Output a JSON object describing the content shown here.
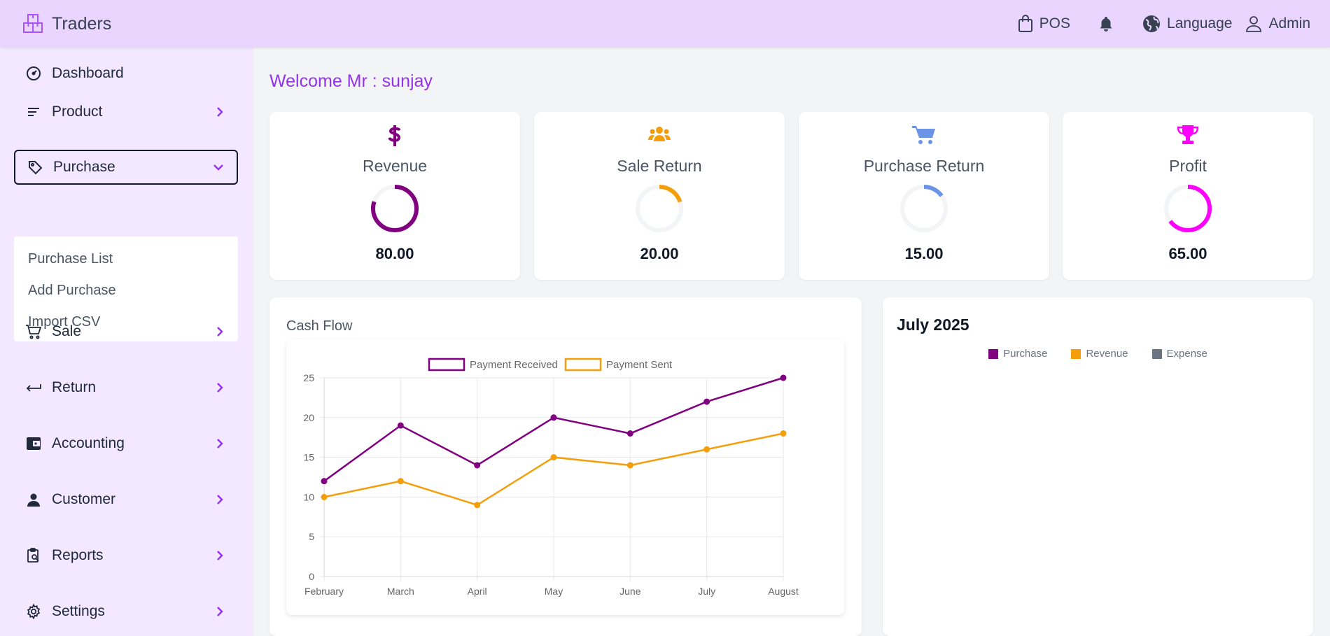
{
  "header": {
    "brand": "Traders",
    "actions": {
      "pos": "POS",
      "language": "Language",
      "admin": "Admin"
    }
  },
  "sidebar": {
    "items": [
      {
        "label": "Dashboard",
        "icon": "dashboard-icon"
      },
      {
        "label": "Product",
        "icon": "product-icon"
      },
      {
        "label": "Purchase",
        "icon": "tag-icon"
      },
      {
        "label": "Sale",
        "icon": "cart-icon"
      },
      {
        "label": "Return",
        "icon": "return-icon"
      },
      {
        "label": "Accounting",
        "icon": "wallet-icon"
      },
      {
        "label": "Customer",
        "icon": "user-icon"
      },
      {
        "label": "Reports",
        "icon": "reports-icon"
      },
      {
        "label": "Settings",
        "icon": "gear-icon"
      }
    ],
    "purchase_submenu": [
      "Purchase List",
      "Add Purchase",
      "Import CSV"
    ]
  },
  "welcome": "Welcome Mr : sunjay",
  "cards": [
    {
      "title": "Revenue",
      "value": "80.00",
      "percent": 80,
      "color": "#800080",
      "icon": "dollar-icon"
    },
    {
      "title": "Sale Return",
      "value": "20.00",
      "percent": 20,
      "color": "#f59e0b",
      "icon": "users-icon"
    },
    {
      "title": "Purchase Return",
      "value": "15.00",
      "percent": 15,
      "color": "#6b93e6",
      "icon": "cart-icon"
    },
    {
      "title": "Profit",
      "value": "65.00",
      "percent": 65,
      "color": "#ff00ff",
      "icon": "trophy-icon"
    }
  ],
  "cash_flow": {
    "title": "Cash Flow"
  },
  "chart_data": {
    "type": "line",
    "categories": [
      "February",
      "March",
      "April",
      "May",
      "June",
      "July",
      "August"
    ],
    "series": [
      {
        "name": "Payment Received",
        "values": [
          12,
          19,
          14,
          20,
          18,
          22,
          25
        ],
        "color": "#800080"
      },
      {
        "name": "Payment Sent",
        "values": [
          10,
          12,
          9,
          15,
          14,
          16,
          18
        ],
        "color": "#f59e0b"
      }
    ],
    "ylim": [
      0,
      25
    ],
    "yticks": [
      "0",
      "5",
      "10",
      "15",
      "20",
      "25"
    ],
    "grid": true,
    "legend": "top"
  },
  "month_panel": {
    "title": "July 2025",
    "legend": [
      {
        "name": "Purchase",
        "color": "#800080"
      },
      {
        "name": "Revenue",
        "color": "#f59e0b"
      },
      {
        "name": "Expense",
        "color": "#6b7280"
      }
    ]
  }
}
